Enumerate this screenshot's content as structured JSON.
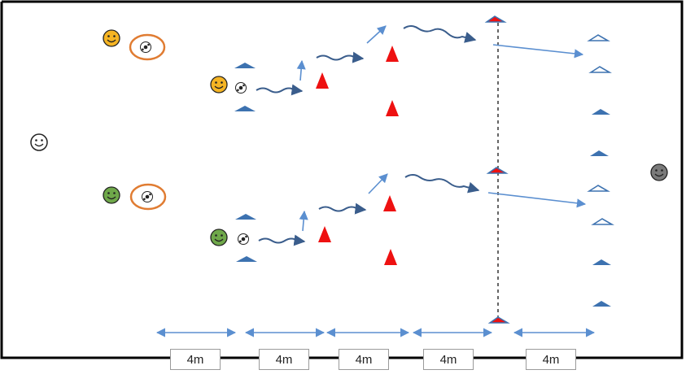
{
  "colors": {
    "border": "#000000",
    "cone_blue": "#3d72b0",
    "cone_red": "#ee1111",
    "arrow": "#5b8fd0",
    "dribble": "#3a5d8c",
    "player_orange": "#f5b423",
    "player_green": "#6fa84a",
    "player_grey": "#7a7a7a",
    "player_white": "#ffffff",
    "ball_ring": "#e07c32",
    "centerline": "#000000"
  },
  "icons": {
    "player": "smiley-face-icon",
    "ball": "soccer-ball-icon",
    "cone": "triangle-cone-icon",
    "dribble": "wavy-arrow-icon",
    "pass": "straight-arrow-icon"
  },
  "distance_labels": [
    "4m",
    "4m",
    "4m",
    "4m",
    "4m"
  ]
}
